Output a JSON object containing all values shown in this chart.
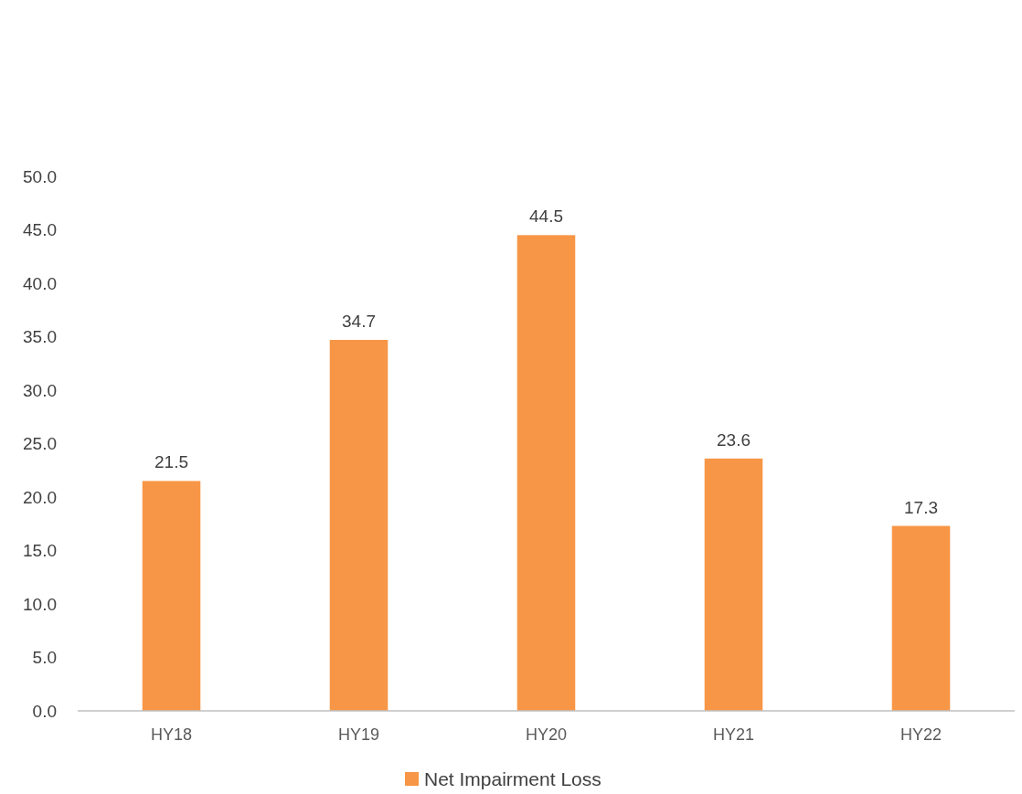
{
  "chart_data": {
    "type": "bar",
    "categories": [
      "HY18",
      "HY19",
      "HY20",
      "HY21",
      "HY22"
    ],
    "series": [
      {
        "name": "Net Impairment Loss",
        "color": "#f79646",
        "values": [
          21.5,
          34.7,
          44.5,
          23.6,
          17.3
        ]
      }
    ],
    "ylim": [
      0,
      50
    ],
    "yticks": [
      {
        "value": 0,
        "label": "0.0"
      },
      {
        "value": 5,
        "label": "5.0"
      },
      {
        "value": 10,
        "label": "10.0"
      },
      {
        "value": 15,
        "label": "15.0"
      },
      {
        "value": 20,
        "label": "20.0"
      },
      {
        "value": 25,
        "label": "25.0"
      },
      {
        "value": 30,
        "label": "30.0"
      },
      {
        "value": 35,
        "label": "35.0"
      },
      {
        "value": 40,
        "label": "40.0"
      },
      {
        "value": 45,
        "label": "45.0"
      },
      {
        "value": 50,
        "label": "50.0"
      }
    ],
    "data_labels": true,
    "grid": false,
    "legend": "bottom"
  }
}
